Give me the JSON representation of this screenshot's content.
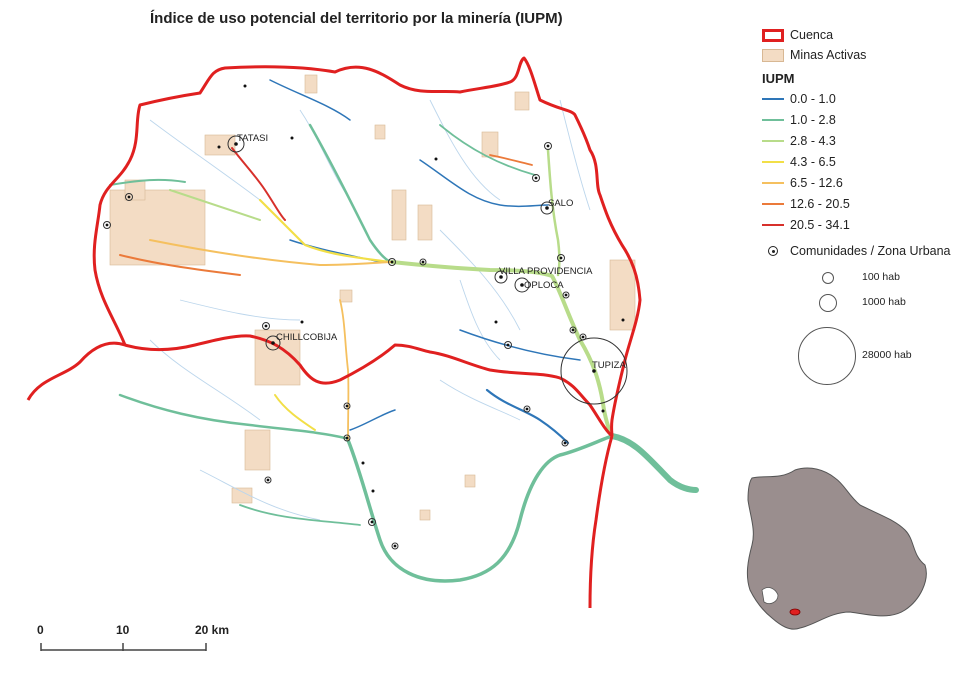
{
  "title": "Índice de uso potencial del territorio por la minería (IUPM)",
  "legend": {
    "basin_label": "Cuenca",
    "mines_label": "Minas Activas",
    "iupm_heading": "IUPM",
    "classes": [
      {
        "label": "0.0 - 1.0",
        "color": "#2e76b8"
      },
      {
        "label": "1.0 - 2.8",
        "color": "#6fbf9a"
      },
      {
        "label": "2.8 - 4.3",
        "color": "#b8dc8a"
      },
      {
        "label": "4.3 - 6.5",
        "color": "#f2df47"
      },
      {
        "label": "6.5 - 12.6",
        "color": "#f5c05f"
      },
      {
        "label": "12.6 - 20.5",
        "color": "#eb7a3a"
      },
      {
        "label": "20.5 - 34.1",
        "color": "#d7302b"
      }
    ],
    "communities_label": "Comunidades / Zona Urbana",
    "sizes": [
      {
        "label": "100 hab"
      },
      {
        "label": "1000 hab"
      },
      {
        "label": "28000 hab"
      }
    ],
    "colors": {
      "basin": "#e02020",
      "mines": "#f3dcc4",
      "mines_edge": "#d8b894"
    }
  },
  "places": [
    {
      "name": "TATASI"
    },
    {
      "name": "SALO"
    },
    {
      "name": "VILLA PROVIDENCIA"
    },
    {
      "name": "OPLOCA"
    },
    {
      "name": "CHILLCOBIJA"
    },
    {
      "name": "TUPIZA"
    }
  ],
  "scalebar": {
    "labels": [
      "0",
      "10",
      "20 km"
    ]
  },
  "inset": {
    "country_color": "#9a8e8e",
    "highlight_color": "#e02020"
  }
}
